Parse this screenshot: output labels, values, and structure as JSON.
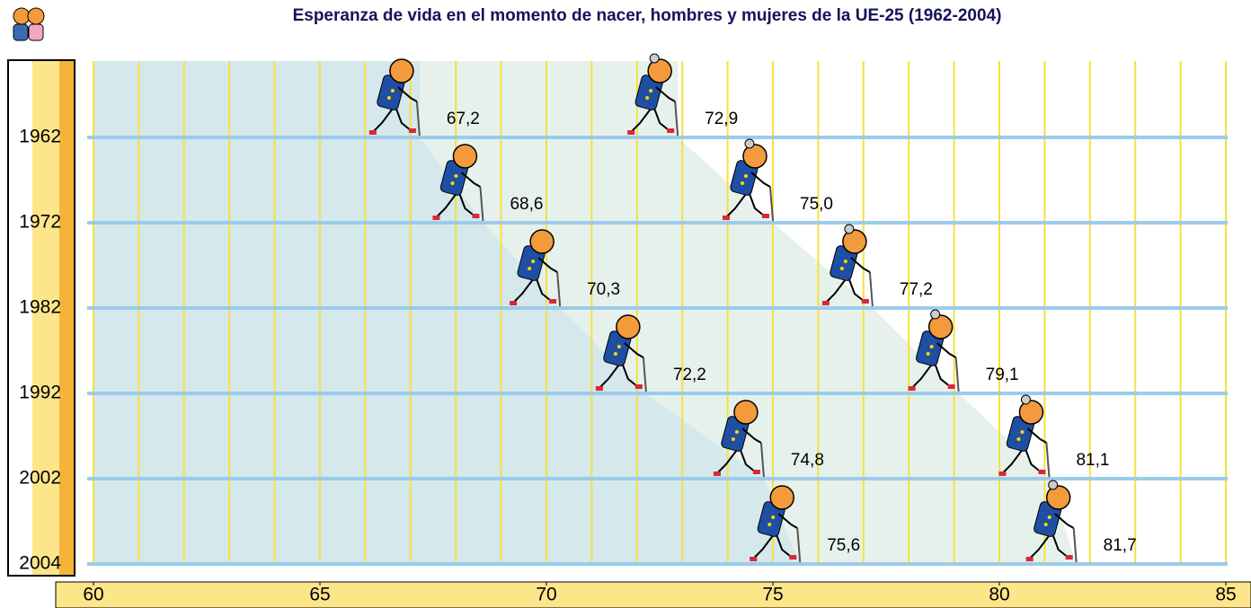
{
  "chart_data": {
    "type": "figure-row",
    "title": "Esperanza de vida en el momento de nacer, hombres y mujeres de la UE-25 (1962-2004)",
    "categories": [
      "1962",
      "1972",
      "1982",
      "1992",
      "2002",
      "2004"
    ],
    "series": [
      {
        "color": "#d5e8ec",
        "values": [
          67.2,
          68.6,
          70.3,
          72.2,
          74.8,
          75.6
        ],
        "value_labels": [
          "67,2",
          "68,6",
          "70,3",
          "72,2",
          "74,8",
          "75,6"
        ]
      },
      {
        "color": "#e7f1ec",
        "values": [
          72.9,
          75.0,
          77.2,
          79.1,
          81.1,
          81.7
        ],
        "value_labels": [
          "72,9",
          "75,0",
          "77,2",
          "79,1",
          "81,1",
          "81,7"
        ]
      }
    ],
    "xlim": [
      60,
      85
    ],
    "xticks": [
      60,
      65,
      70,
      75,
      80,
      85
    ],
    "xminorticks": [
      60,
      61,
      62,
      63,
      64,
      65,
      66,
      67,
      68,
      69,
      70,
      71,
      72,
      73,
      74,
      75,
      76,
      77,
      78,
      79,
      80,
      81,
      82,
      83,
      84,
      85
    ]
  }
}
